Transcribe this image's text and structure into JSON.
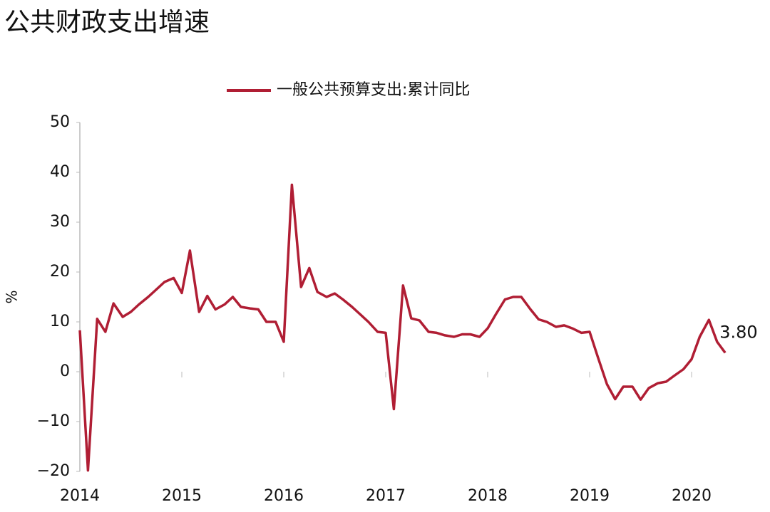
{
  "chart_data": {
    "type": "line",
    "title": "公共财政支出增速",
    "y_label": "%",
    "x": [
      2014.0,
      2014.08,
      2014.17,
      2014.25,
      2014.33,
      2014.42,
      2014.5,
      2014.58,
      2014.67,
      2014.75,
      2014.83,
      2014.92,
      2015.0,
      2015.08,
      2015.17,
      2015.25,
      2015.33,
      2015.42,
      2015.5,
      2015.58,
      2015.67,
      2015.75,
      2015.83,
      2015.92,
      2016.0,
      2016.08,
      2016.17,
      2016.25,
      2016.33,
      2016.42,
      2016.5,
      2016.58,
      2016.67,
      2016.75,
      2016.83,
      2016.92,
      2017.0,
      2017.08,
      2017.17,
      2017.25,
      2017.33,
      2017.42,
      2017.5,
      2017.58,
      2017.67,
      2017.75,
      2017.83,
      2017.92,
      2018.0,
      2018.08,
      2018.17,
      2018.25,
      2018.33,
      2018.42,
      2018.5,
      2018.58,
      2018.67,
      2018.75,
      2018.83,
      2018.92,
      2019.0,
      2019.08,
      2019.17,
      2019.25,
      2019.33,
      2019.42,
      2019.5,
      2019.58,
      2019.67,
      2019.75,
      2019.83,
      2019.92,
      2020.0,
      2020.08,
      2020.17,
      2020.25,
      2020.33
    ],
    "series": [
      {
        "name": "一般公共预算支出:累计同比",
        "color": "#b01e34",
        "values": [
          8.3,
          -19.8,
          10.6,
          8,
          13.7,
          11,
          12,
          13.5,
          15,
          16.5,
          18,
          18.8,
          15.8,
          24.3,
          12,
          15.2,
          12.5,
          13.5,
          15,
          13,
          12.7,
          12.5,
          10,
          10,
          6,
          37.5,
          17,
          20.8,
          16,
          15,
          15.7,
          14.5,
          13,
          11.5,
          10,
          8,
          7.8,
          -7.5,
          17.3,
          10.7,
          10.3,
          8,
          7.8,
          7.3,
          7,
          7.5,
          7.5,
          7,
          8.7,
          11.5,
          14.5,
          15,
          15,
          12.5,
          10.5,
          10,
          9,
          9.3,
          8.7,
          7.8,
          8,
          3,
          -2.5,
          -5.5,
          -3,
          -3,
          -5.6,
          -3.3,
          -2.3,
          -2,
          -0.8,
          0.5,
          2.5,
          7,
          10.4,
          6,
          3.8
        ],
        "value_labels": [
          null,
          null,
          null,
          null,
          null,
          null,
          null,
          null,
          null,
          null,
          null,
          null,
          null,
          null,
          null,
          null,
          null,
          null,
          null,
          null,
          null,
          null,
          null,
          null,
          null,
          null,
          null,
          null,
          null,
          null,
          null,
          null,
          null,
          null,
          null,
          null,
          null,
          null,
          null,
          null,
          null,
          null,
          null,
          null,
          null,
          null,
          null,
          null,
          null,
          null,
          null,
          null,
          null,
          null,
          null,
          null,
          null,
          null,
          null,
          null,
          null,
          null,
          null,
          null,
          null,
          null,
          null,
          null,
          null,
          null,
          null,
          null,
          null,
          null,
          null,
          null,
          "3.80"
        ]
      }
    ],
    "xlim": [
      2014,
      2020.6
    ],
    "xticks": [
      2014,
      2015,
      2016,
      2017,
      2018,
      2019,
      2020
    ],
    "ylim": [
      -20,
      50
    ],
    "yticks": [
      {
        "value": -20,
        "label": "−20"
      },
      {
        "value": -10,
        "label": "−10"
      },
      0,
      10,
      20,
      30,
      40,
      50
    ],
    "grid": false,
    "legend": "top"
  }
}
